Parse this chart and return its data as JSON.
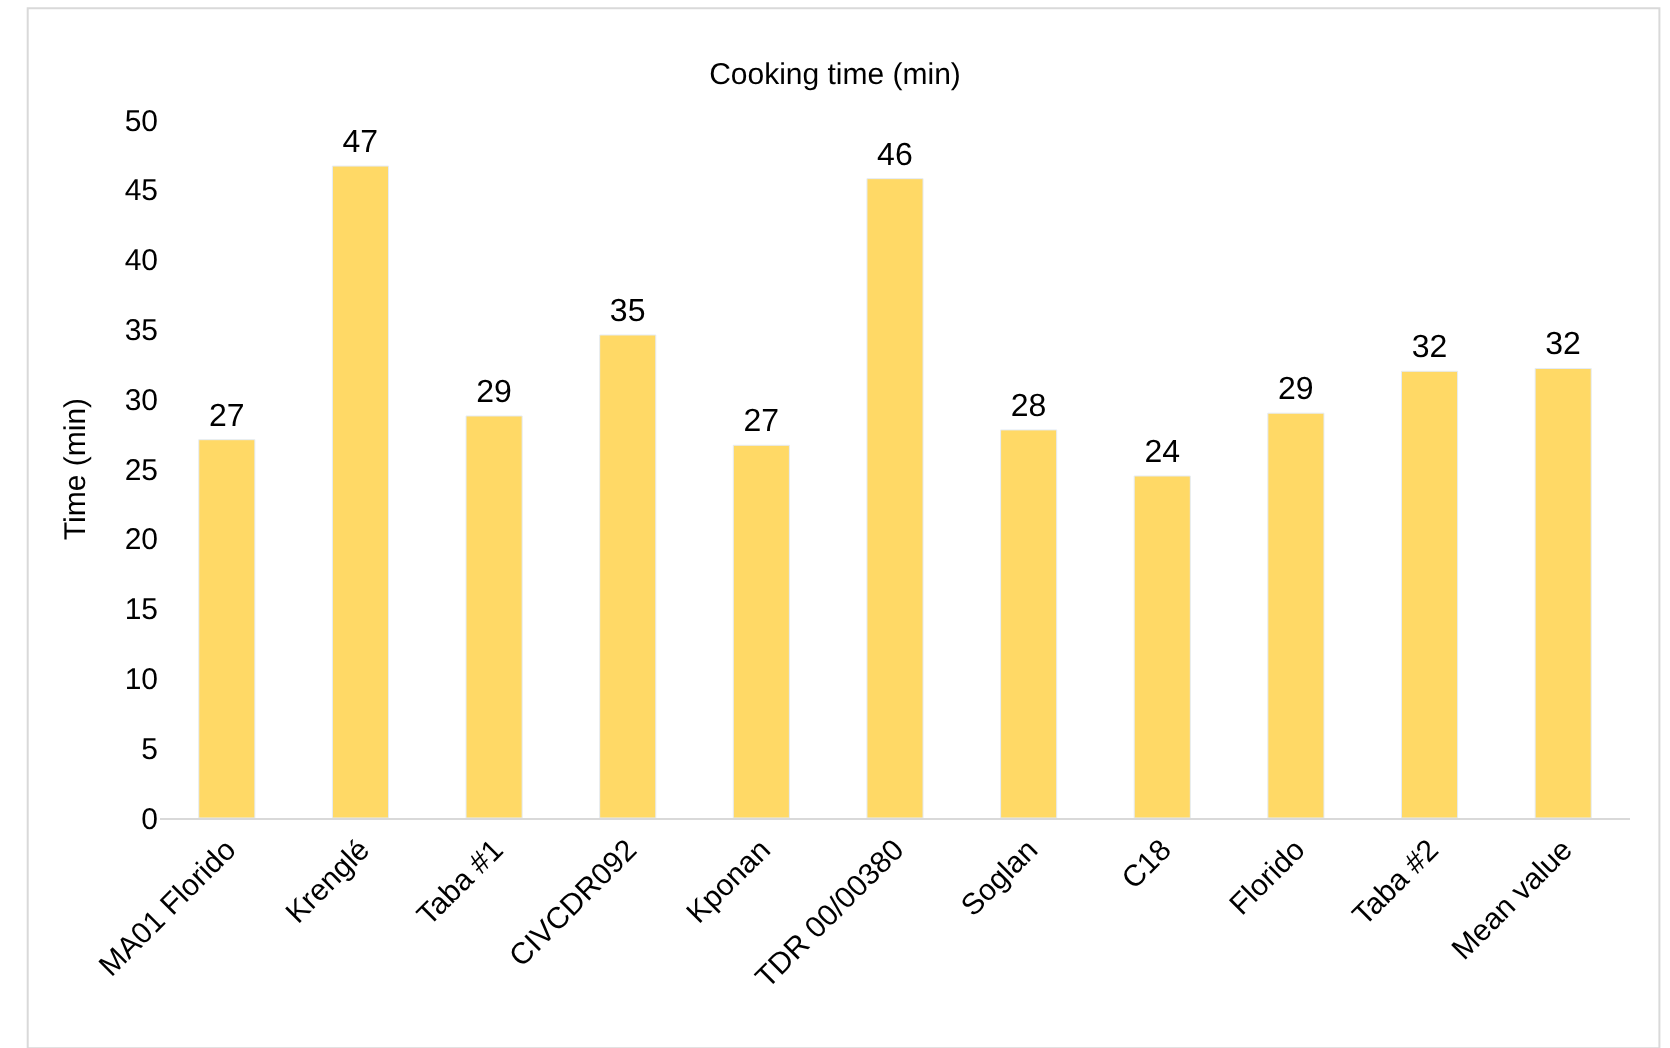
{
  "chart_data": {
    "type": "bar",
    "title": "Cooking time (min)",
    "ylabel": "Time (min)",
    "categories": [
      "MA01 Florido",
      "Krenglé",
      "Taba #1",
      "CIVCDR092",
      "Kponan",
      "TDR 00/00380",
      "Soglan",
      "C18",
      "Florido",
      "Taba #2",
      "Mean value"
    ],
    "values": [
      27.1,
      46.7,
      28.8,
      34.6,
      26.7,
      45.8,
      27.8,
      24.5,
      29.0,
      32.0,
      32.2
    ],
    "value_labels": [
      "27",
      "47",
      "29",
      "35",
      "27",
      "46",
      "28",
      "24",
      "29",
      "32",
      "32"
    ],
    "color": "#ffd966",
    "ylim": [
      0,
      50
    ],
    "yticks": [
      0,
      5,
      10,
      15,
      20,
      25,
      30,
      35,
      40,
      45,
      50
    ],
    "grid": false,
    "legend": false
  }
}
